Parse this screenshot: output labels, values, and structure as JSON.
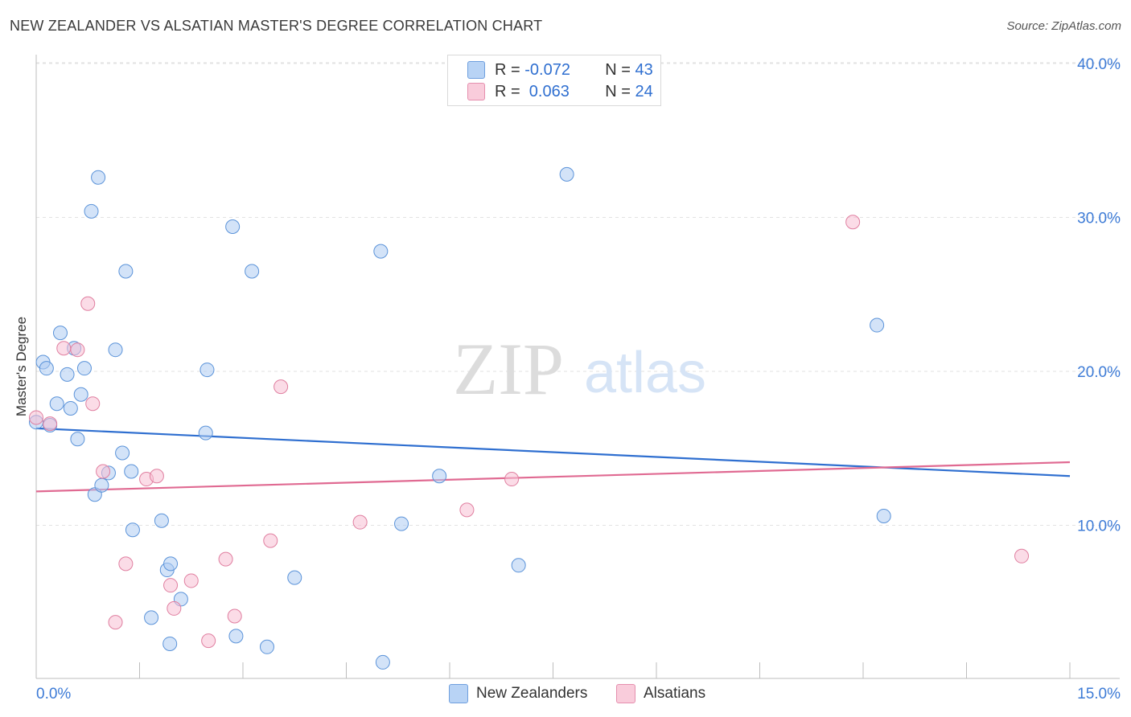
{
  "header": {
    "title": "NEW ZEALANDER VS ALSATIAN MASTER'S DEGREE CORRELATION CHART",
    "source": "Source: ZipAtlas.com"
  },
  "legend": {
    "rows": [
      {
        "r_label": "R = ",
        "r_value": "-0.072",
        "n_label": "N = ",
        "n_value": "43"
      },
      {
        "r_label": "R = ",
        "r_value": " 0.063",
        "n_label": "N = ",
        "n_value": "24"
      }
    ]
  },
  "bottom_legend": [
    "New Zealanders",
    "Alsatians"
  ],
  "watermark": {
    "zip": "ZIP",
    "atlas": "atlas"
  },
  "colors": {
    "blue_fill": "#aeccf2",
    "blue_stroke": "#5b93d9",
    "blue_line": "#2f6fd0",
    "pink_fill": "#f7c0d3",
    "pink_stroke": "#e07fa0",
    "pink_line": "#e06a92",
    "axis_label": "#3d7bd6"
  },
  "chart_data": {
    "type": "scatter",
    "title": "NEW ZEALANDER VS ALSATIAN MASTER'S DEGREE CORRELATION CHART",
    "xlabel": "",
    "ylabel": "Master's Degree",
    "xlim": [
      0,
      15
    ],
    "ylim": [
      0,
      40.8
    ],
    "x_tick_labels": [
      "0.0%",
      "15.0%"
    ],
    "y_ticks": [
      10,
      20,
      30,
      40
    ],
    "y_tick_labels": [
      "10.0%",
      "20.0%",
      "30.0%",
      "40.0%"
    ],
    "grid": true,
    "legend_position": "top-center",
    "series": [
      {
        "name": "New Zealanders",
        "R": -0.072,
        "N": 43,
        "trend": {
          "x": [
            0,
            15
          ],
          "y": [
            16.3,
            13.2
          ]
        },
        "points": [
          [
            0.0,
            16.7
          ],
          [
            0.1,
            20.6
          ],
          [
            0.15,
            20.2
          ],
          [
            0.2,
            16.5
          ],
          [
            0.3,
            17.9
          ],
          [
            0.35,
            22.5
          ],
          [
            0.45,
            19.8
          ],
          [
            0.5,
            17.6
          ],
          [
            0.55,
            21.5
          ],
          [
            0.6,
            15.6
          ],
          [
            0.65,
            18.5
          ],
          [
            0.7,
            20.2
          ],
          [
            0.8,
            30.4
          ],
          [
            0.85,
            12.0
          ],
          [
            0.9,
            32.6
          ],
          [
            0.95,
            12.6
          ],
          [
            1.05,
            13.4
          ],
          [
            1.15,
            21.4
          ],
          [
            1.25,
            14.7
          ],
          [
            1.3,
            26.5
          ],
          [
            1.38,
            13.5
          ],
          [
            1.4,
            9.7
          ],
          [
            1.67,
            4.0
          ],
          [
            1.82,
            10.3
          ],
          [
            1.9,
            7.1
          ],
          [
            1.94,
            2.3
          ],
          [
            1.95,
            7.5
          ],
          [
            2.1,
            5.2
          ],
          [
            2.46,
            16.0
          ],
          [
            2.48,
            20.1
          ],
          [
            2.85,
            29.4
          ],
          [
            2.9,
            2.8
          ],
          [
            3.13,
            26.5
          ],
          [
            3.35,
            2.1
          ],
          [
            3.75,
            6.6
          ],
          [
            5.0,
            27.8
          ],
          [
            5.03,
            1.1
          ],
          [
            5.3,
            10.1
          ],
          [
            5.85,
            13.2
          ],
          [
            7.0,
            7.4
          ],
          [
            7.7,
            32.8
          ],
          [
            12.2,
            23.0
          ],
          [
            12.3,
            10.6
          ]
        ]
      },
      {
        "name": "Alsatians",
        "R": 0.063,
        "N": 24,
        "trend": {
          "x": [
            0,
            15
          ],
          "y": [
            12.2,
            14.1
          ]
        },
        "points": [
          [
            0.0,
            17.0
          ],
          [
            0.2,
            16.6
          ],
          [
            0.4,
            21.5
          ],
          [
            0.6,
            21.4
          ],
          [
            0.75,
            24.4
          ],
          [
            0.82,
            17.9
          ],
          [
            0.97,
            13.5
          ],
          [
            1.15,
            3.7
          ],
          [
            1.3,
            7.5
          ],
          [
            1.6,
            13.0
          ],
          [
            1.75,
            13.2
          ],
          [
            1.95,
            6.1
          ],
          [
            2.0,
            4.6
          ],
          [
            2.25,
            6.4
          ],
          [
            2.5,
            2.5
          ],
          [
            2.75,
            7.8
          ],
          [
            2.88,
            4.1
          ],
          [
            3.4,
            9.0
          ],
          [
            3.55,
            19.0
          ],
          [
            4.7,
            10.2
          ],
          [
            6.25,
            11.0
          ],
          [
            6.9,
            13.0
          ],
          [
            11.85,
            29.7
          ],
          [
            14.3,
            8.0
          ]
        ]
      }
    ]
  }
}
